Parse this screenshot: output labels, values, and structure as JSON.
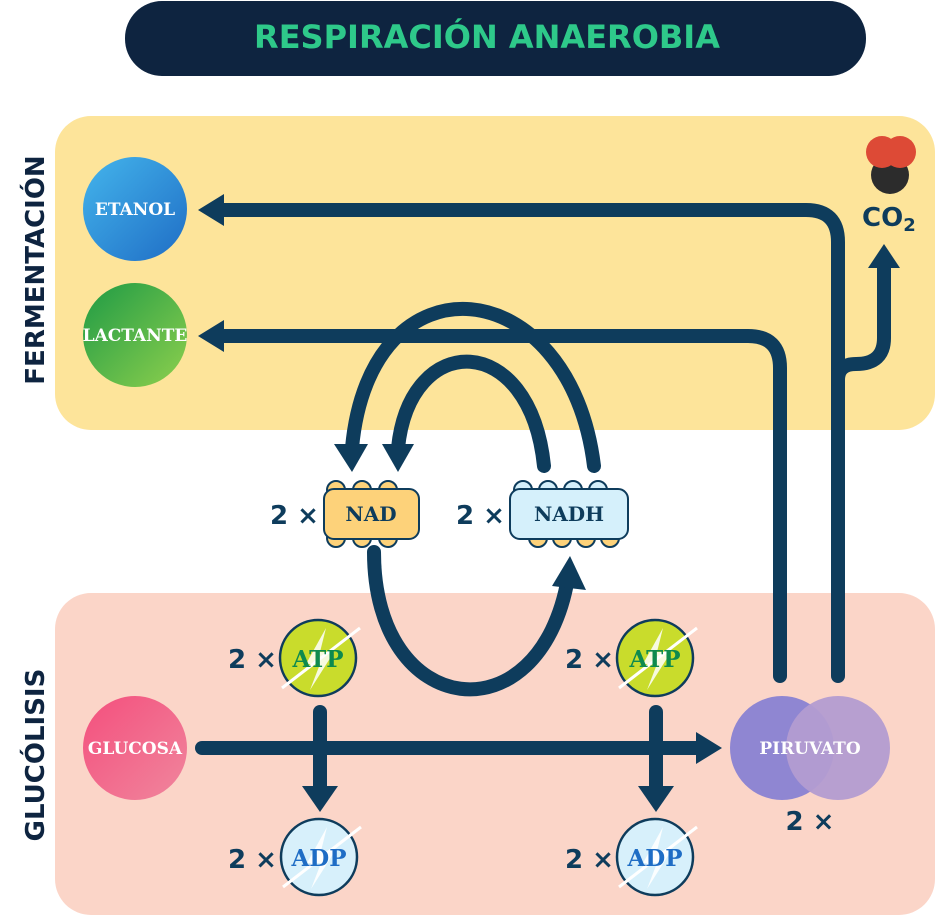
{
  "title": "RESPIRACIÓN ANAEROBIA",
  "sections": {
    "fermentation": "FERMENTACIÓN",
    "glycolysis": "GLUCÓLISIS"
  },
  "nodes": {
    "etanol": "ETANOL",
    "lactante": "LACTANTE",
    "glucosa": "GLUCOSA",
    "piruvato": "PIRUVATO",
    "nad": "NAD",
    "nadh": "NADH",
    "atp": "ATP",
    "adp": "ADP",
    "co2": "CO",
    "co2_sub": "2"
  },
  "multipliers": {
    "nad": "2 ×",
    "nadh": "2 ×",
    "atp_left": "2 ×",
    "atp_right": "2 ×",
    "adp_left": "2 ×",
    "adp_right": "2 ×",
    "piruvato": "2 ×"
  },
  "colors": {
    "title_bar": "#0e2440",
    "title_text": "#2ec98a",
    "fermentation_bg": "#fde49a",
    "glycolysis_bg": "#fbd5c8",
    "arrow": "#0e3c5c",
    "etanol": "#2f8fd8",
    "lactante": "#4cb34a",
    "glucosa": "#ef5d86",
    "piruvato": "#9d8fcc",
    "nad": "#fdd27a",
    "nadh": "#d5f0fb",
    "atp": "#c9dc2c",
    "adp": "#d7f0fb",
    "co2_red": "#dd4a36",
    "co2_dark": "#2c2c2c"
  }
}
